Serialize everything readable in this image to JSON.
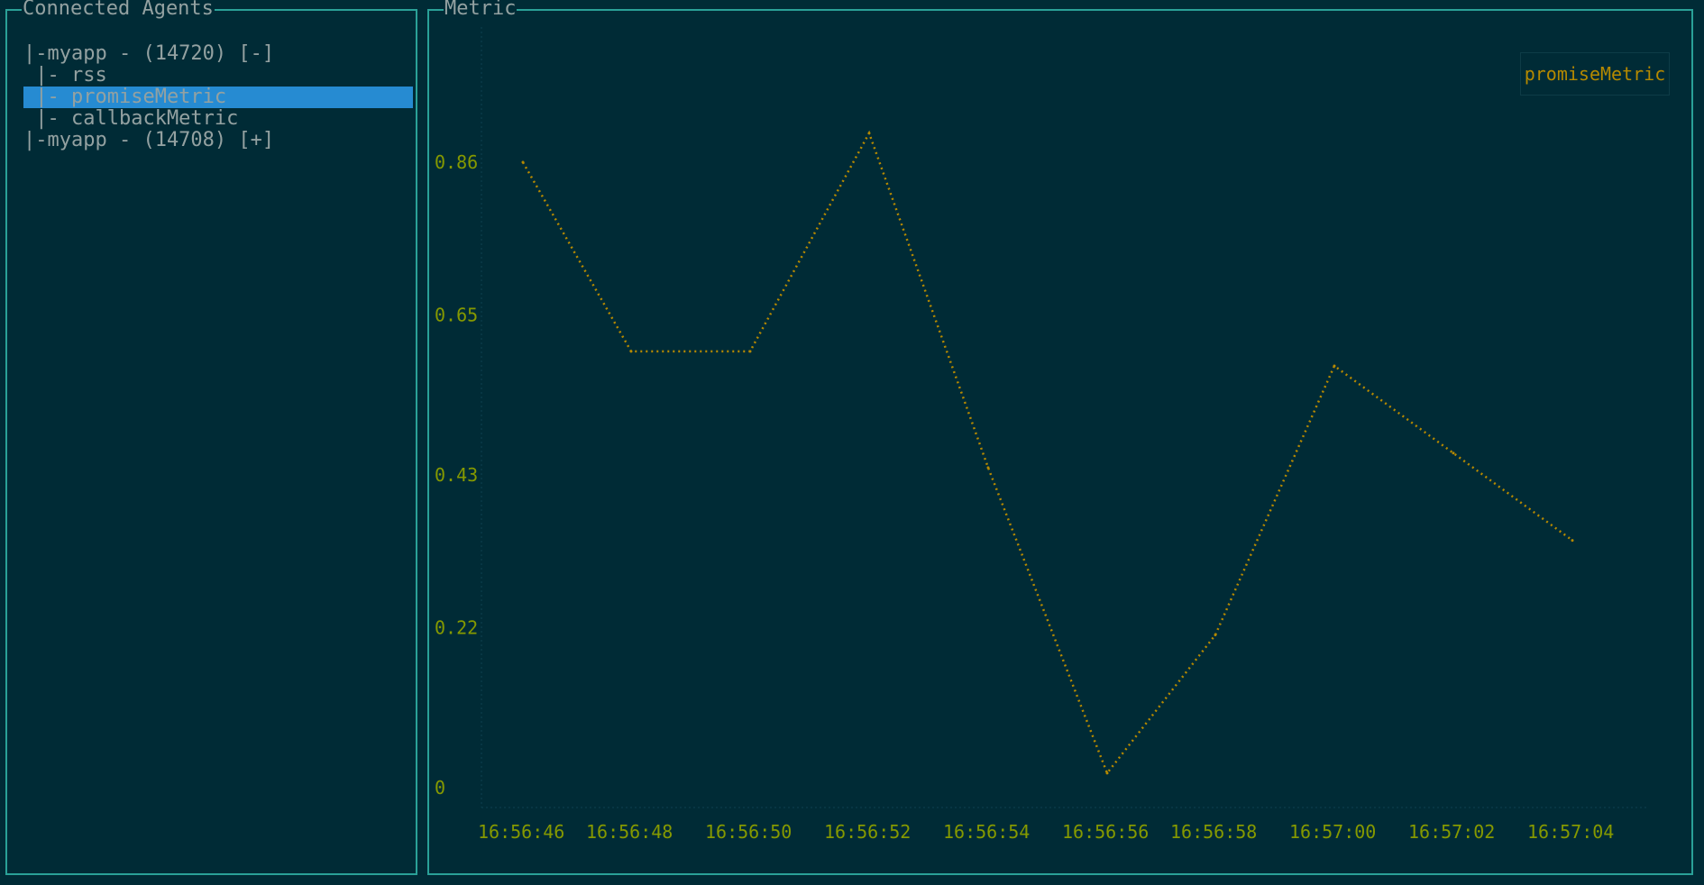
{
  "agents_panel": {
    "title": "Connected Agents",
    "rows": [
      {
        "label": "|-myapp - (14720) [-]",
        "selected": false
      },
      {
        "label": " |- rss",
        "selected": false
      },
      {
        "label": " |- promiseMetric",
        "selected": true
      },
      {
        "label": " |- callbackMetric",
        "selected": false
      },
      {
        "label": "|-myapp - (14708) [+]",
        "selected": false
      }
    ]
  },
  "metric_panel": {
    "title": "Metric",
    "legend": "promiseMetric"
  },
  "colors": {
    "background": "#002b36",
    "border": "#2aa198",
    "text": "#93a1a1",
    "selection": "#268bd2",
    "axis_labels": "#859900",
    "series": "#b58900"
  },
  "chart_data": {
    "type": "line",
    "title": "",
    "xlabel": "",
    "ylabel": "",
    "y_ticks": [
      "0",
      "0.22",
      "0.43",
      "0.65",
      "0.86"
    ],
    "y_tick_values": [
      0,
      0.22,
      0.43,
      0.65,
      0.86
    ],
    "x_ticks": [
      "16:56:46",
      "16:56:48",
      "16:56:50",
      "16:56:52",
      "16:56:54",
      "16:56:56",
      "16:56:58",
      "16:57:00",
      "16:57:02",
      "16:57:04"
    ],
    "ylim": [
      0,
      0.92
    ],
    "grid": false,
    "legend_position": "top-right",
    "series": [
      {
        "name": "promiseMetric",
        "x": [
          "16:56:46",
          "16:56:48",
          "16:56:50",
          "16:56:52",
          "16:56:54",
          "16:56:56",
          "16:56:58",
          "16:57:00",
          "16:57:02",
          "16:57:04"
        ],
        "values": [
          0.86,
          0.6,
          0.6,
          0.9,
          0.44,
          0.02,
          0.21,
          0.58,
          0.46,
          0.34
        ]
      }
    ]
  }
}
